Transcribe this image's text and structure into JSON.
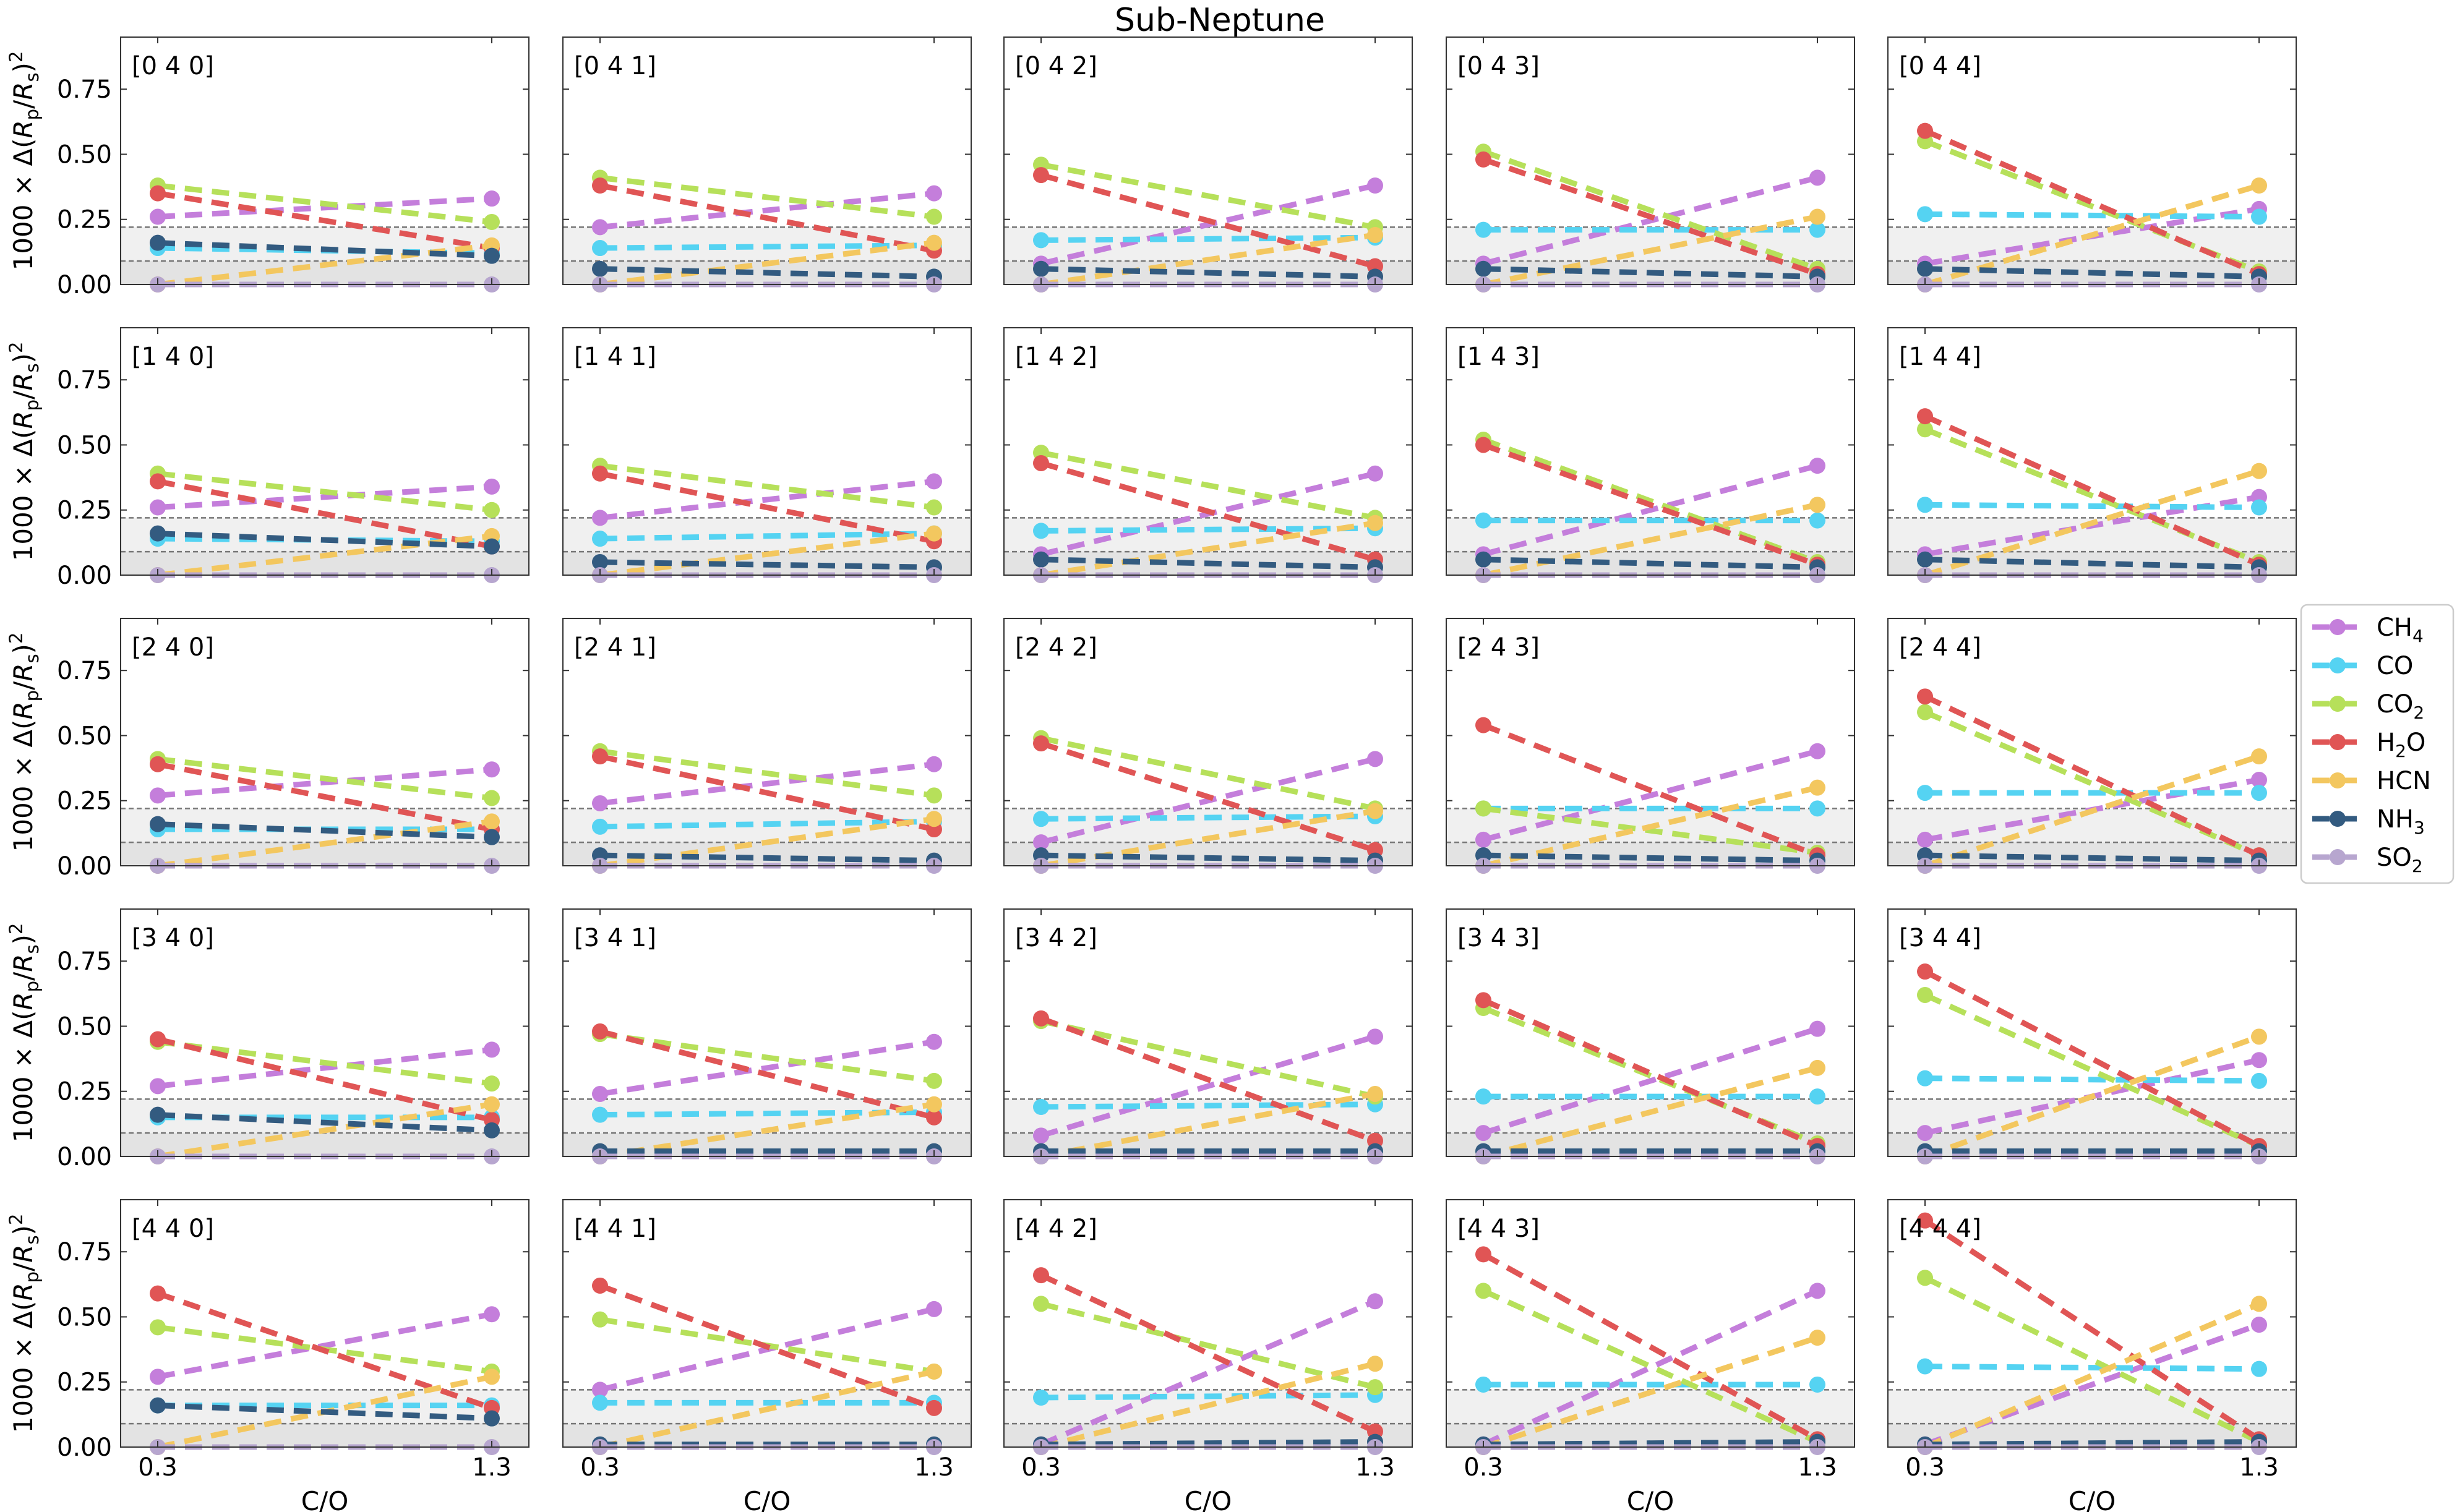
{
  "chart_data": {
    "type": "line",
    "title": "Sub-Neptune",
    "xlabel": "C/O",
    "ylabel": "1000 × Δ(R_p/R_s)^2",
    "x": [
      0.3,
      1.3
    ],
    "x_ticks": [
      "0.3",
      "1.3"
    ],
    "ylim": [
      0,
      0.95
    ],
    "y_ticks": [
      "0.00",
      "0.25",
      "0.50",
      "0.75"
    ],
    "thresholds": [
      0.09,
      0.22
    ],
    "legend_position": "right",
    "grid": false,
    "series_meta": [
      {
        "key": "CH4",
        "name": "CH4",
        "color": "#c47edb"
      },
      {
        "key": "CO",
        "name": "CO",
        "color": "#55d3f2"
      },
      {
        "key": "CO2",
        "name": "CO2",
        "color": "#b6e05a"
      },
      {
        "key": "H2O",
        "name": "H2O",
        "color": "#e05555"
      },
      {
        "key": "HCN",
        "name": "HCN",
        "color": "#f3c75f"
      },
      {
        "key": "NH3",
        "name": "NH3",
        "color": "#335b80"
      },
      {
        "key": "SO2",
        "name": "SO2",
        "color": "#b7a6cf"
      }
    ],
    "panels": [
      {
        "label": "[0 4 0]",
        "values": {
          "CH4": [
            0.26,
            0.33
          ],
          "CO": [
            0.14,
            0.12
          ],
          "CO2": [
            0.38,
            0.24
          ],
          "H2O": [
            0.35,
            0.14
          ],
          "HCN": [
            0.0,
            0.15
          ],
          "NH3": [
            0.16,
            0.11
          ],
          "SO2": [
            0.0,
            0.0
          ]
        }
      },
      {
        "label": "[0 4 1]",
        "values": {
          "CH4": [
            0.22,
            0.35
          ],
          "CO": [
            0.14,
            0.15
          ],
          "CO2": [
            0.41,
            0.26
          ],
          "H2O": [
            0.38,
            0.13
          ],
          "HCN": [
            0.0,
            0.16
          ],
          "NH3": [
            0.06,
            0.03
          ],
          "SO2": [
            0.0,
            0.0
          ]
        }
      },
      {
        "label": "[0 4 2]",
        "values": {
          "CH4": [
            0.08,
            0.38
          ],
          "CO": [
            0.17,
            0.18
          ],
          "CO2": [
            0.46,
            0.22
          ],
          "H2O": [
            0.42,
            0.07
          ],
          "HCN": [
            0.0,
            0.19
          ],
          "NH3": [
            0.06,
            0.03
          ],
          "SO2": [
            0.0,
            0.0
          ]
        }
      },
      {
        "label": "[0 4 3]",
        "values": {
          "CH4": [
            0.08,
            0.41
          ],
          "CO": [
            0.21,
            0.21
          ],
          "CO2": [
            0.51,
            0.06
          ],
          "H2O": [
            0.48,
            0.04
          ],
          "HCN": [
            0.0,
            0.26
          ],
          "NH3": [
            0.06,
            0.03
          ],
          "SO2": [
            0.0,
            0.0
          ]
        }
      },
      {
        "label": "[0 4 4]",
        "values": {
          "CH4": [
            0.08,
            0.29
          ],
          "CO": [
            0.27,
            0.26
          ],
          "CO2": [
            0.55,
            0.05
          ],
          "H2O": [
            0.59,
            0.04
          ],
          "HCN": [
            0.0,
            0.38
          ],
          "NH3": [
            0.06,
            0.03
          ],
          "SO2": [
            0.0,
            0.0
          ]
        }
      },
      {
        "label": "[1 4 0]",
        "values": {
          "CH4": [
            0.26,
            0.34
          ],
          "CO": [
            0.14,
            0.13
          ],
          "CO2": [
            0.39,
            0.25
          ],
          "H2O": [
            0.36,
            0.11
          ],
          "HCN": [
            0.0,
            0.15
          ],
          "NH3": [
            0.16,
            0.11
          ],
          "SO2": [
            0.0,
            0.0
          ]
        }
      },
      {
        "label": "[1 4 1]",
        "values": {
          "CH4": [
            0.22,
            0.36
          ],
          "CO": [
            0.14,
            0.16
          ],
          "CO2": [
            0.42,
            0.26
          ],
          "H2O": [
            0.39,
            0.13
          ],
          "HCN": [
            0.0,
            0.16
          ],
          "NH3": [
            0.05,
            0.03
          ],
          "SO2": [
            0.0,
            0.0
          ]
        }
      },
      {
        "label": "[1 4 2]",
        "values": {
          "CH4": [
            0.08,
            0.39
          ],
          "CO": [
            0.17,
            0.18
          ],
          "CO2": [
            0.47,
            0.22
          ],
          "H2O": [
            0.43,
            0.06
          ],
          "HCN": [
            0.0,
            0.2
          ],
          "NH3": [
            0.06,
            0.03
          ],
          "SO2": [
            0.0,
            0.0
          ]
        }
      },
      {
        "label": "[1 4 3]",
        "values": {
          "CH4": [
            0.08,
            0.42
          ],
          "CO": [
            0.21,
            0.21
          ],
          "CO2": [
            0.52,
            0.05
          ],
          "H2O": [
            0.5,
            0.04
          ],
          "HCN": [
            0.0,
            0.27
          ],
          "NH3": [
            0.06,
            0.03
          ],
          "SO2": [
            0.0,
            0.0
          ]
        }
      },
      {
        "label": "[1 4 4]",
        "values": {
          "CH4": [
            0.08,
            0.3
          ],
          "CO": [
            0.27,
            0.26
          ],
          "CO2": [
            0.56,
            0.05
          ],
          "H2O": [
            0.61,
            0.04
          ],
          "HCN": [
            0.0,
            0.4
          ],
          "NH3": [
            0.06,
            0.03
          ],
          "SO2": [
            0.0,
            0.0
          ]
        }
      },
      {
        "label": "[2 4 0]",
        "values": {
          "CH4": [
            0.27,
            0.37
          ],
          "CO": [
            0.14,
            0.14
          ],
          "CO2": [
            0.41,
            0.26
          ],
          "H2O": [
            0.39,
            0.14
          ],
          "HCN": [
            0.0,
            0.17
          ],
          "NH3": [
            0.16,
            0.11
          ],
          "SO2": [
            0.0,
            0.0
          ]
        }
      },
      {
        "label": "[2 4 1]",
        "values": {
          "CH4": [
            0.24,
            0.39
          ],
          "CO": [
            0.15,
            0.17
          ],
          "CO2": [
            0.44,
            0.27
          ],
          "H2O": [
            0.42,
            0.14
          ],
          "HCN": [
            0.0,
            0.18
          ],
          "NH3": [
            0.04,
            0.02
          ],
          "SO2": [
            0.0,
            0.0
          ]
        }
      },
      {
        "label": "[2 4 2]",
        "values": {
          "CH4": [
            0.09,
            0.41
          ],
          "CO": [
            0.18,
            0.19
          ],
          "CO2": [
            0.49,
            0.22
          ],
          "H2O": [
            0.47,
            0.06
          ],
          "HCN": [
            0.0,
            0.21
          ],
          "NH3": [
            0.04,
            0.02
          ],
          "SO2": [
            0.0,
            0.0
          ]
        }
      },
      {
        "label": "[2 4 3]",
        "values": {
          "CH4": [
            0.1,
            0.44
          ],
          "CO": [
            0.22,
            0.22
          ],
          "CO2": [
            0.22,
            0.05
          ],
          "H2O": [
            0.54,
            0.04
          ],
          "HCN": [
            0.0,
            0.3
          ],
          "NH3": [
            0.04,
            0.02
          ],
          "SO2": [
            0.0,
            0.0
          ]
        }
      },
      {
        "label": "[2 4 4]",
        "values": {
          "CH4": [
            0.1,
            0.33
          ],
          "CO": [
            0.28,
            0.28
          ],
          "CO2": [
            0.59,
            0.04
          ],
          "H2O": [
            0.65,
            0.04
          ],
          "HCN": [
            0.0,
            0.42
          ],
          "NH3": [
            0.04,
            0.02
          ],
          "SO2": [
            0.0,
            0.0
          ]
        }
      },
      {
        "label": "[3 4 0]",
        "values": {
          "CH4": [
            0.27,
            0.41
          ],
          "CO": [
            0.15,
            0.15
          ],
          "CO2": [
            0.44,
            0.28
          ],
          "H2O": [
            0.45,
            0.14
          ],
          "HCN": [
            0.0,
            0.2
          ],
          "NH3": [
            0.16,
            0.1
          ],
          "SO2": [
            0.0,
            0.0
          ]
        }
      },
      {
        "label": "[3 4 1]",
        "values": {
          "CH4": [
            0.24,
            0.44
          ],
          "CO": [
            0.16,
            0.17
          ],
          "CO2": [
            0.47,
            0.29
          ],
          "H2O": [
            0.48,
            0.15
          ],
          "HCN": [
            0.0,
            0.2
          ],
          "NH3": [
            0.02,
            0.02
          ],
          "SO2": [
            0.0,
            0.0
          ]
        }
      },
      {
        "label": "[3 4 2]",
        "values": {
          "CH4": [
            0.08,
            0.46
          ],
          "CO": [
            0.19,
            0.2
          ],
          "CO2": [
            0.52,
            0.23
          ],
          "H2O": [
            0.53,
            0.06
          ],
          "HCN": [
            0.0,
            0.24
          ],
          "NH3": [
            0.02,
            0.02
          ],
          "SO2": [
            0.0,
            0.0
          ]
        }
      },
      {
        "label": "[3 4 3]",
        "values": {
          "CH4": [
            0.09,
            0.49
          ],
          "CO": [
            0.23,
            0.23
          ],
          "CO2": [
            0.57,
            0.05
          ],
          "H2O": [
            0.6,
            0.04
          ],
          "HCN": [
            0.0,
            0.34
          ],
          "NH3": [
            0.02,
            0.02
          ],
          "SO2": [
            0.0,
            0.0
          ]
        }
      },
      {
        "label": "[3 4 4]",
        "values": {
          "CH4": [
            0.09,
            0.37
          ],
          "CO": [
            0.3,
            0.29
          ],
          "CO2": [
            0.62,
            0.04
          ],
          "H2O": [
            0.71,
            0.04
          ],
          "HCN": [
            0.0,
            0.46
          ],
          "NH3": [
            0.02,
            0.02
          ],
          "SO2": [
            0.0,
            0.0
          ]
        }
      },
      {
        "label": "[4 4 0]",
        "values": {
          "CH4": [
            0.27,
            0.51
          ],
          "CO": [
            0.16,
            0.16
          ],
          "CO2": [
            0.46,
            0.29
          ],
          "H2O": [
            0.59,
            0.15
          ],
          "HCN": [
            0.0,
            0.27
          ],
          "NH3": [
            0.16,
            0.11
          ],
          "SO2": [
            0.0,
            0.0
          ]
        }
      },
      {
        "label": "[4 4 1]",
        "values": {
          "CH4": [
            0.22,
            0.53
          ],
          "CO": [
            0.17,
            0.17
          ],
          "CO2": [
            0.49,
            0.29
          ],
          "H2O": [
            0.62,
            0.15
          ],
          "HCN": [
            0.0,
            0.29
          ],
          "NH3": [
            0.01,
            0.01
          ],
          "SO2": [
            0.0,
            0.0
          ]
        }
      },
      {
        "label": "[4 4 2]",
        "values": {
          "CH4": [
            0.01,
            0.56
          ],
          "CO": [
            0.19,
            0.2
          ],
          "CO2": [
            0.55,
            0.23
          ],
          "H2O": [
            0.66,
            0.06
          ],
          "HCN": [
            0.0,
            0.32
          ],
          "NH3": [
            0.01,
            0.02
          ],
          "SO2": [
            0.0,
            0.0
          ]
        }
      },
      {
        "label": "[4 4 3]",
        "values": {
          "CH4": [
            0.01,
            0.6
          ],
          "CO": [
            0.24,
            0.24
          ],
          "CO2": [
            0.6,
            0.02
          ],
          "H2O": [
            0.74,
            0.03
          ],
          "HCN": [
            0.0,
            0.42
          ],
          "NH3": [
            0.01,
            0.02
          ],
          "SO2": [
            0.0,
            0.0
          ]
        }
      },
      {
        "label": "[4 4 4]",
        "values": {
          "CH4": [
            0.01,
            0.47
          ],
          "CO": [
            0.31,
            0.3
          ],
          "CO2": [
            0.65,
            0.02
          ],
          "H2O": [
            0.87,
            0.03
          ],
          "HCN": [
            0.0,
            0.55
          ],
          "NH3": [
            0.01,
            0.02
          ],
          "SO2": [
            0.0,
            0.0
          ]
        }
      }
    ]
  }
}
